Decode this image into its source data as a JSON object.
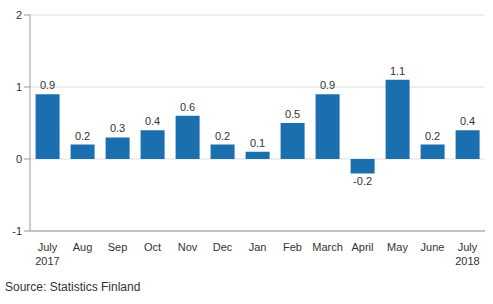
{
  "chart_data": {
    "type": "bar",
    "source": "Source: Statistics Finland",
    "categories": [
      "July 2017",
      "Aug",
      "Sep",
      "Oct",
      "Nov",
      "Dec",
      "Jan",
      "Feb",
      "March",
      "April",
      "May",
      "June",
      "July 2018"
    ],
    "values": [
      0.9,
      0.2,
      0.3,
      0.4,
      0.6,
      0.2,
      0.1,
      0.5,
      0.9,
      -0.2,
      1.1,
      0.2,
      0.4
    ],
    "color": "#1c6fae",
    "ylim": [
      -1,
      2
    ],
    "yticks": [
      -1,
      0,
      1,
      2
    ],
    "grid": true,
    "data_labels": true
  }
}
